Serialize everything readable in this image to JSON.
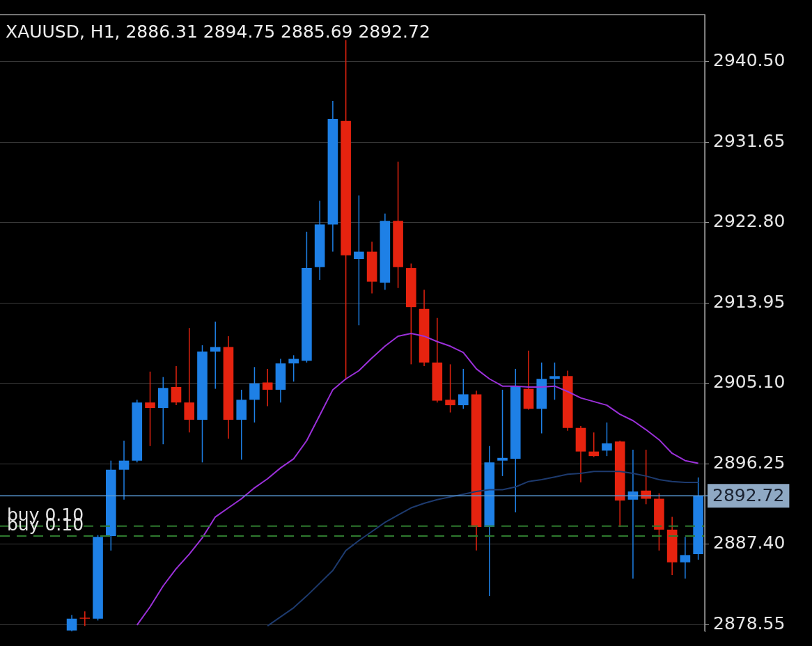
{
  "chart_data": {
    "type": "candlestick",
    "title": "XAUUSD, H1, 2886.31 2894.75 2885.69 2892.72",
    "categories": [
      null,
      null,
      null,
      null,
      null,
      null,
      null,
      null,
      null,
      null,
      null,
      null,
      null,
      null,
      null,
      null,
      null,
      null,
      null,
      null,
      null,
      null,
      null,
      null,
      null,
      null,
      null,
      null,
      null,
      null,
      null,
      null,
      null,
      null,
      null,
      null,
      null,
      null,
      null,
      null,
      null,
      null,
      null,
      null,
      null,
      null,
      null,
      null,
      null,
      null,
      null,
      null,
      null,
      null
    ],
    "ohlc": [
      null,
      null,
      null,
      null,
      null,
      [
        2877.9,
        2879.6,
        2877.8,
        2879.2
      ],
      [
        2879.3,
        2880.0,
        2878.4,
        2879.2
      ],
      [
        2879.2,
        2888.4,
        2879.0,
        2888.2
      ],
      [
        2888.3,
        2896.6,
        2886.7,
        2895.6
      ],
      [
        2895.6,
        2898.8,
        2892.3,
        2896.6
      ],
      [
        2896.6,
        2903.3,
        2896.4,
        2903.0
      ],
      [
        2903.0,
        2906.4,
        2898.2,
        2902.4
      ],
      [
        2902.4,
        2905.8,
        2898.4,
        2904.6
      ],
      [
        2904.7,
        2907.0,
        2902.7,
        2903.0
      ],
      [
        2903.0,
        2911.2,
        2899.7,
        2901.1
      ],
      [
        2901.1,
        2909.3,
        2896.4,
        2908.6
      ],
      [
        2908.6,
        2911.9,
        2904.5,
        2909.1
      ],
      [
        2909.1,
        2910.3,
        2899.0,
        2901.1
      ],
      [
        2901.1,
        2904.4,
        2896.7,
        2903.3
      ],
      [
        2903.3,
        2906.9,
        2900.8,
        2905.1
      ],
      [
        2905.2,
        2906.7,
        2902.6,
        2904.4
      ],
      [
        2904.4,
        2907.8,
        2903.0,
        2907.3
      ],
      [
        2907.3,
        2908.2,
        2905.3,
        2907.8
      ],
      [
        2907.6,
        2921.8,
        2907.4,
        2917.8
      ],
      [
        2917.9,
        2925.2,
        2916.5,
        2922.6
      ],
      [
        2922.6,
        2936.2,
        2919.6,
        2934.2
      ],
      [
        2934.0,
        2942.9,
        2905.5,
        2919.2
      ],
      [
        2918.8,
        2925.8,
        2911.5,
        2919.6
      ],
      [
        2919.6,
        2920.7,
        2915.0,
        2916.3
      ],
      [
        2916.2,
        2923.8,
        2915.4,
        2923.0
      ],
      [
        2923.0,
        2929.5,
        2915.6,
        2917.9
      ],
      [
        2917.8,
        2918.3,
        2907.2,
        2913.5
      ],
      [
        2913.3,
        2915.4,
        2907.0,
        2907.4
      ],
      [
        2907.4,
        2912.3,
        2903.0,
        2903.2
      ],
      [
        2903.3,
        2907.2,
        2901.9,
        2902.7
      ],
      [
        2902.7,
        2906.7,
        2902.3,
        2903.9
      ],
      [
        2903.9,
        2904.3,
        2886.7,
        2889.3
      ],
      [
        2889.3,
        2898.2,
        2881.7,
        2896.4
      ],
      [
        2896.6,
        2904.4,
        2894.9,
        2896.9
      ],
      [
        2896.8,
        2906.7,
        2890.9,
        2904.8
      ],
      [
        2904.5,
        2908.7,
        2902.2,
        2902.3
      ],
      [
        2902.3,
        2907.4,
        2899.6,
        2905.6
      ],
      [
        2905.6,
        2907.4,
        2903.3,
        2905.9
      ],
      [
        2905.9,
        2906.5,
        2899.9,
        2900.2
      ],
      [
        2900.2,
        2900.4,
        2894.2,
        2897.6
      ],
      [
        2897.6,
        2899.7,
        2897.0,
        2897.1
      ],
      [
        2897.7,
        2900.8,
        2897.1,
        2898.5
      ],
      [
        2898.7,
        2898.8,
        2889.3,
        2892.2
      ],
      [
        2892.3,
        2897.8,
        2883.6,
        2893.2
      ],
      [
        2893.3,
        2897.8,
        2891.8,
        2892.4
      ],
      [
        2892.4,
        2893.0,
        2886.7,
        2889.0
      ],
      [
        2889.0,
        2890.4,
        2884.0,
        2885.4
      ],
      [
        2885.4,
        2888.2,
        2883.6,
        2886.2
      ],
      [
        2886.31,
        2894.75,
        2885.69,
        2892.72
      ]
    ],
    "colors": [
      null,
      null,
      null,
      null,
      null,
      "#1e80e6",
      "#e6230f",
      "#1e80e6",
      "#1e80e6",
      "#1e80e6",
      "#1e80e6",
      "#e6230f",
      "#1e80e6",
      "#e6230f",
      "#e6230f",
      "#1e80e6",
      "#1e80e6",
      "#e6230f",
      "#1e80e6",
      "#1e80e6",
      "#e6230f",
      "#1e80e6",
      "#1e80e6",
      "#1e80e6",
      "#1e80e6",
      "#1e80e6",
      "#e6230f",
      "#1e80e6",
      "#e6230f",
      "#1e80e6",
      "#e6230f",
      "#e6230f",
      "#e6230f",
      "#e6230f",
      "#e6230f",
      "#1e80e6",
      "#e6230f",
      "#1e80e6",
      "#1e80e6",
      "#1e80e6",
      "#e6230f",
      "#1e80e6",
      "#1e80e6",
      "#e6230f",
      "#e6230f",
      "#e6230f",
      "#1e80e6",
      "#e6230f",
      "#1e80e6",
      "#e6230f",
      "#e6230f",
      "#e6230f",
      "#1e80e6",
      "#1e80e6"
    ],
    "series": [
      {
        "type": "line",
        "color": "#9b30d9",
        "values": [
          null,
          null,
          null,
          null,
          null,
          null,
          null,
          null,
          null,
          null,
          2878.5,
          2880.5,
          2882.8,
          2884.7,
          2886.3,
          2888.1,
          2890.4,
          2891.4,
          2892.4,
          2893.6,
          2894.6,
          2895.8,
          2896.8,
          2898.8,
          2901.6,
          2904.4,
          2905.6,
          2906.5,
          2907.9,
          2909.2,
          2910.3,
          2910.6,
          2910.3,
          2909.7,
          2909.2,
          2908.5,
          2906.7,
          2905.6,
          2904.8,
          2904.8,
          2904.7,
          2904.7,
          2904.8,
          2904.2,
          2903.5,
          2903.1,
          2902.7,
          2901.7,
          2901.0,
          2900.0,
          2898.9,
          2897.4,
          2896.6,
          2896.3
        ]
      },
      {
        "type": "line",
        "color": "#1d3a6e",
        "values": [
          null,
          null,
          null,
          null,
          null,
          null,
          null,
          null,
          null,
          null,
          null,
          null,
          null,
          null,
          null,
          null,
          null,
          null,
          null,
          null,
          2878.4,
          2879.4,
          2880.4,
          2881.7,
          2883.1,
          2884.5,
          2886.7,
          2887.8,
          2888.8,
          2889.8,
          2890.6,
          2891.4,
          2891.9,
          2892.3,
          2892.6,
          2892.9,
          2893.2,
          2893.4,
          2893.4,
          2893.7,
          2894.3,
          2894.5,
          2894.8,
          2895.1,
          2895.2,
          2895.4,
          2895.4,
          2895.4,
          2895.2,
          2894.9,
          2894.5,
          2894.3,
          2894.2,
          2894.2
        ]
      }
    ],
    "ref_lines": [
      {
        "axis": "y",
        "value": 2892.72,
        "label": "2892.72",
        "color": "#5a9bd8",
        "line_style": "solid"
      },
      {
        "axis": "y",
        "value": 2889.4,
        "label": "buy 0.10",
        "color": "#2f7a2f",
        "line_style": "dashed"
      },
      {
        "axis": "y",
        "value": 2888.3,
        "label": "buy 0.10",
        "color": "#2f7a2f",
        "line_style": "dashed"
      }
    ],
    "ylim": [
      2877.8,
      2945.7
    ],
    "yticks": [
      {
        "value": 2940.5,
        "label": "2940.50"
      },
      {
        "value": 2931.65,
        "label": "2931.65"
      },
      {
        "value": 2922.8,
        "label": "2922.80"
      },
      {
        "value": 2913.95,
        "label": "2913.95"
      },
      {
        "value": 2905.1,
        "label": "2905.10"
      },
      {
        "value": 2896.25,
        "label": "2896.25"
      },
      {
        "value": 2887.4,
        "label": "2887.40"
      },
      {
        "value": 2878.55,
        "label": "2878.55"
      }
    ],
    "grid": "y",
    "legend": false,
    "marker": "none",
    "tick_labels": "y"
  }
}
